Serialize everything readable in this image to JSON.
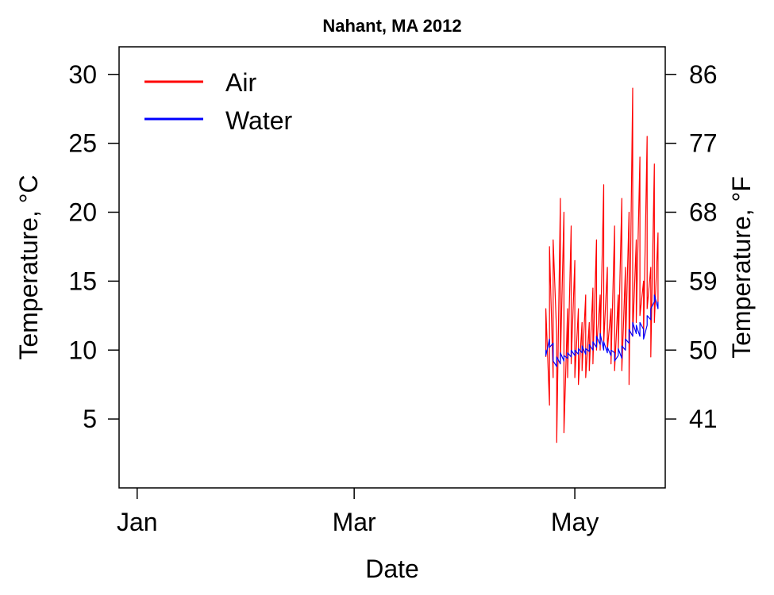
{
  "chart_data": {
    "type": "line",
    "title": "Nahant, MA 2012",
    "xlabel": "Date",
    "ylabel": "Temperature, °C",
    "ylabel_right": "Temperature, °F",
    "x_ticks": [
      {
        "label": "Jan",
        "date": "2012-01-01"
      },
      {
        "label": "Mar",
        "date": "2012-03-01"
      },
      {
        "label": "May",
        "date": "2012-05-01"
      }
    ],
    "xlim": [
      "2011-12-27",
      "2012-05-26"
    ],
    "ylim": [
      0,
      32
    ],
    "y_ticks": [
      5,
      10,
      15,
      20,
      25,
      30
    ],
    "y_ticks_right": [
      {
        "label": "41",
        "celsius": 5
      },
      {
        "label": "50",
        "celsius": 10
      },
      {
        "label": "59",
        "celsius": 15
      },
      {
        "label": "68",
        "celsius": 20
      },
      {
        "label": "77",
        "celsius": 25
      },
      {
        "label": "86",
        "celsius": 30
      }
    ],
    "legend": {
      "position": "top-left",
      "entries": [
        "Air",
        "Water"
      ]
    },
    "grid": false,
    "series": [
      {
        "name": "Air",
        "color": "#ff0000",
        "points": [
          [
            "2012-04-23",
            9.5
          ],
          [
            "2012-04-23",
            13.0
          ],
          [
            "2012-04-24",
            6.0
          ],
          [
            "2012-04-24",
            17.5
          ],
          [
            "2012-04-25",
            8.0
          ],
          [
            "2012-04-25",
            18.0
          ],
          [
            "2012-04-26",
            11.0
          ],
          [
            "2012-04-26",
            3.3
          ],
          [
            "2012-04-27",
            21.0
          ],
          [
            "2012-04-27",
            9.0
          ],
          [
            "2012-04-28",
            20.0
          ],
          [
            "2012-04-28",
            4.0
          ],
          [
            "2012-04-29",
            13.0
          ],
          [
            "2012-04-29",
            8.0
          ],
          [
            "2012-04-30",
            19.0
          ],
          [
            "2012-04-30",
            9.0
          ],
          [
            "2012-05-01",
            16.5
          ],
          [
            "2012-05-01",
            8.0
          ],
          [
            "2012-05-02",
            13.0
          ],
          [
            "2012-05-02",
            7.5
          ],
          [
            "2012-05-03",
            12.0
          ],
          [
            "2012-05-03",
            8.5
          ],
          [
            "2012-05-04",
            14.0
          ],
          [
            "2012-05-04",
            8.0
          ],
          [
            "2012-05-05",
            12.0
          ],
          [
            "2012-05-05",
            8.5
          ],
          [
            "2012-05-06",
            14.5
          ],
          [
            "2012-05-06",
            9.0
          ],
          [
            "2012-05-07",
            18.0
          ],
          [
            "2012-05-07",
            10.0
          ],
          [
            "2012-05-08",
            14.0
          ],
          [
            "2012-05-08",
            10.0
          ],
          [
            "2012-05-09",
            22.0
          ],
          [
            "2012-05-09",
            10.5
          ],
          [
            "2012-05-10",
            16.0
          ],
          [
            "2012-05-10",
            10.0
          ],
          [
            "2012-05-11",
            13.0
          ],
          [
            "2012-05-11",
            9.0
          ],
          [
            "2012-05-12",
            19.0
          ],
          [
            "2012-05-12",
            8.5
          ],
          [
            "2012-05-13",
            14.0
          ],
          [
            "2012-05-13",
            10.0
          ],
          [
            "2012-05-14",
            21.0
          ],
          [
            "2012-05-14",
            8.5
          ],
          [
            "2012-05-15",
            16.0
          ],
          [
            "2012-05-15",
            10.0
          ],
          [
            "2012-05-16",
            20.0
          ],
          [
            "2012-05-16",
            7.5
          ],
          [
            "2012-05-17",
            29.0
          ],
          [
            "2012-05-17",
            11.0
          ],
          [
            "2012-05-18",
            18.0
          ],
          [
            "2012-05-18",
            12.0
          ],
          [
            "2012-05-19",
            24.0
          ],
          [
            "2012-05-19",
            12.5
          ],
          [
            "2012-05-20",
            15.0
          ],
          [
            "2012-05-20",
            11.0
          ],
          [
            "2012-05-21",
            25.5
          ],
          [
            "2012-05-21",
            13.0
          ],
          [
            "2012-05-22",
            16.0
          ],
          [
            "2012-05-22",
            9.5
          ],
          [
            "2012-05-23",
            23.5
          ],
          [
            "2012-05-23",
            12.0
          ],
          [
            "2012-05-24",
            18.5
          ],
          [
            "2012-05-24",
            13.0
          ]
        ]
      },
      {
        "name": "Water",
        "color": "#0000ff",
        "points": [
          [
            "2012-04-23",
            10.0
          ],
          [
            "2012-04-23",
            9.6
          ],
          [
            "2012-04-24",
            10.8
          ],
          [
            "2012-04-24",
            10.2
          ],
          [
            "2012-04-25",
            10.5
          ],
          [
            "2012-04-25",
            9.2
          ],
          [
            "2012-04-26",
            8.8
          ],
          [
            "2012-04-26",
            9.5
          ],
          [
            "2012-04-27",
            9.0
          ],
          [
            "2012-04-27",
            9.8
          ],
          [
            "2012-04-28",
            9.2
          ],
          [
            "2012-04-28",
            9.6
          ],
          [
            "2012-04-29",
            9.4
          ],
          [
            "2012-04-29",
            9.8
          ],
          [
            "2012-04-30",
            9.5
          ],
          [
            "2012-04-30",
            10.0
          ],
          [
            "2012-05-01",
            9.6
          ],
          [
            "2012-05-01",
            10.0
          ],
          [
            "2012-05-02",
            9.7
          ],
          [
            "2012-05-02",
            10.1
          ],
          [
            "2012-05-03",
            9.8
          ],
          [
            "2012-05-03",
            10.3
          ],
          [
            "2012-05-04",
            9.7
          ],
          [
            "2012-05-04",
            10.1
          ],
          [
            "2012-05-05",
            9.9
          ],
          [
            "2012-05-05",
            10.4
          ],
          [
            "2012-05-06",
            10.0
          ],
          [
            "2012-05-06",
            10.6
          ],
          [
            "2012-05-07",
            10.2
          ],
          [
            "2012-05-07",
            11.0
          ],
          [
            "2012-05-08",
            10.4
          ],
          [
            "2012-05-08",
            11.2
          ],
          [
            "2012-05-09",
            10.0
          ],
          [
            "2012-05-09",
            10.6
          ],
          [
            "2012-05-10",
            9.8
          ],
          [
            "2012-05-10",
            10.2
          ],
          [
            "2012-05-11",
            9.6
          ],
          [
            "2012-05-11",
            10.0
          ],
          [
            "2012-05-12",
            9.8
          ],
          [
            "2012-05-12",
            9.2
          ],
          [
            "2012-05-13",
            9.6
          ],
          [
            "2012-05-13",
            10.1
          ],
          [
            "2012-05-14",
            9.4
          ],
          [
            "2012-05-14",
            10.3
          ],
          [
            "2012-05-15",
            10.0
          ],
          [
            "2012-05-15",
            10.8
          ],
          [
            "2012-05-16",
            10.5
          ],
          [
            "2012-05-16",
            11.5
          ],
          [
            "2012-05-17",
            11.0
          ],
          [
            "2012-05-17",
            12.0
          ],
          [
            "2012-05-18",
            11.2
          ],
          [
            "2012-05-18",
            11.8
          ],
          [
            "2012-05-19",
            11.0
          ],
          [
            "2012-05-19",
            12.0
          ],
          [
            "2012-05-20",
            11.5
          ],
          [
            "2012-05-20",
            10.8
          ],
          [
            "2012-05-21",
            11.8
          ],
          [
            "2012-05-21",
            12.5
          ],
          [
            "2012-05-22",
            12.2
          ],
          [
            "2012-05-22",
            13.0
          ],
          [
            "2012-05-23",
            13.5
          ],
          [
            "2012-05-23",
            14.0
          ],
          [
            "2012-05-24",
            13.0
          ],
          [
            "2012-05-24",
            13.5
          ]
        ]
      }
    ]
  }
}
